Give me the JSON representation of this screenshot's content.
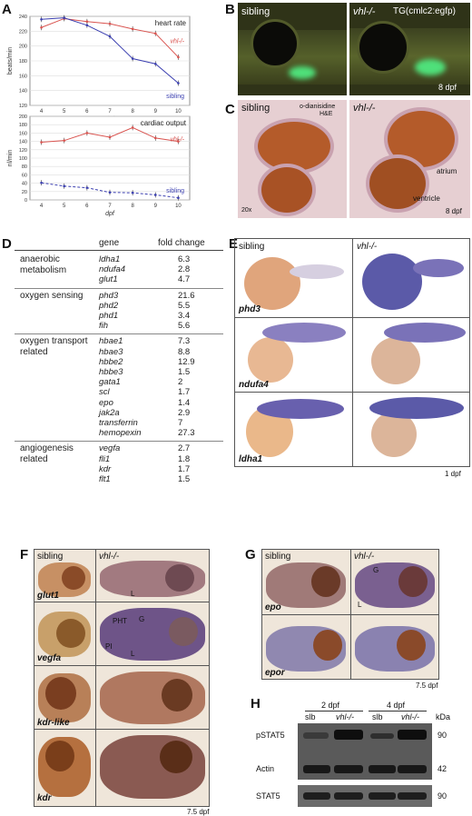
{
  "panels": {
    "A": "A",
    "B": "B",
    "C": "C",
    "D": "D",
    "E": "E",
    "F": "F",
    "G": "G",
    "H": "H"
  },
  "chart_data": [
    {
      "type": "line",
      "title": "heart rate",
      "xlabel": "dpf",
      "ylabel": "beats/min",
      "x": [
        4,
        5,
        6,
        7,
        8,
        9,
        10
      ],
      "xlim": [
        3.5,
        10.5
      ],
      "ylim": [
        120,
        240
      ],
      "yticks": [
        120,
        140,
        160,
        180,
        200,
        220,
        240
      ],
      "grid": true,
      "series": [
        {
          "name": "vhl-/-",
          "color": "#d9534f",
          "values": [
            225,
            237,
            233,
            230,
            223,
            217,
            185
          ]
        },
        {
          "name": "sibling",
          "color": "#3b3fb0",
          "values": [
            236,
            238,
            228,
            213,
            183,
            176,
            150
          ]
        }
      ]
    },
    {
      "type": "line",
      "title": "cardiac output",
      "xlabel": "dpf",
      "ylabel": "nl/min",
      "x": [
        4,
        5,
        6,
        7,
        8,
        9,
        10
      ],
      "xlim": [
        3.5,
        10.5
      ],
      "ylim": [
        0,
        200
      ],
      "yticks": [
        0,
        20,
        40,
        60,
        80,
        100,
        120,
        140,
        160,
        180,
        200
      ],
      "grid": true,
      "series": [
        {
          "name": "vhl-/-",
          "color": "#d9534f",
          "values": [
            138,
            142,
            160,
            150,
            173,
            148,
            140
          ]
        },
        {
          "name": "sibling",
          "color": "#3b3fb0",
          "values": [
            41,
            33,
            29,
            18,
            17,
            12,
            5
          ]
        }
      ]
    }
  ],
  "B": {
    "sibling": "sibling",
    "mutant": "vhl-/-",
    "tg": "TG(cmlc2:egfp)",
    "age": "8 dpf"
  },
  "C": {
    "sibling": "sibling",
    "mutant": "vhl-/-",
    "stain1": "o-dianisidine",
    "stain2": "H&E",
    "mag": "20x",
    "atrium": "atrium",
    "ventricle": "ventricle",
    "age": "8 dpf"
  },
  "D": {
    "col_gene": "gene",
    "col_fold": "fold change",
    "groups": [
      {
        "label": "anaerobic metabolism",
        "rows": [
          [
            "ldha1",
            "6.3"
          ],
          [
            "ndufa4",
            "2.8"
          ],
          [
            "glut1",
            "4.7"
          ]
        ]
      },
      {
        "label": "oxygen sensing",
        "rows": [
          [
            "phd3",
            "21.6"
          ],
          [
            "phd2",
            "5.5"
          ],
          [
            "phd1",
            "3.4"
          ],
          [
            "fih",
            "5.6"
          ]
        ]
      },
      {
        "label": "oxygen transport related",
        "rows": [
          [
            "hbae1",
            "7.3"
          ],
          [
            "hbae3",
            "8.8"
          ],
          [
            "hbbe2",
            "12.9"
          ],
          [
            "hbbe3",
            "1.5"
          ],
          [
            "gata1",
            "2"
          ],
          [
            "scl",
            "1.7"
          ],
          [
            "epo",
            "1.4"
          ],
          [
            "jak2a",
            "2.9"
          ],
          [
            "transferrin",
            "7"
          ],
          [
            "hemopexin",
            "27.3"
          ]
        ]
      },
      {
        "label": "angiogenesis related",
        "rows": [
          [
            "vegfa",
            "2.7"
          ],
          [
            "fli1",
            "1.8"
          ],
          [
            "kdr",
            "1.7"
          ],
          [
            "flt1",
            "1.5"
          ]
        ]
      }
    ]
  },
  "E": {
    "sibling": "sibling",
    "mutant": "vhl-/-",
    "genes": [
      "phd3",
      "ndufa4",
      "ldha1"
    ],
    "age": "1 dpf"
  },
  "F": {
    "sibling": "sibling",
    "mutant": "vhl-/-",
    "genes": [
      "glut1",
      "vegfa",
      "kdr-like",
      "kdr"
    ],
    "age": "7.5 dpf",
    "markers": {
      "L": "L",
      "PHT": "PHT",
      "G": "G",
      "PI": "PI"
    }
  },
  "G": {
    "sibling": "sibling",
    "mutant": "vhl-/-",
    "genes": [
      "epo",
      "epor"
    ],
    "age": "7.5 dpf",
    "markers": {
      "G": "G",
      "L": "L"
    }
  },
  "H": {
    "time1": "2 dpf",
    "time2": "4 dpf",
    "lanes": [
      "slb",
      "vhl-/-",
      "slb",
      "vhl-/-"
    ],
    "kda": "kDa",
    "blots": [
      {
        "name": "pSTAT5",
        "kda": "90"
      },
      {
        "name": "Actin",
        "kda": "42"
      },
      {
        "name": "STAT5",
        "kda": "90"
      }
    ]
  }
}
